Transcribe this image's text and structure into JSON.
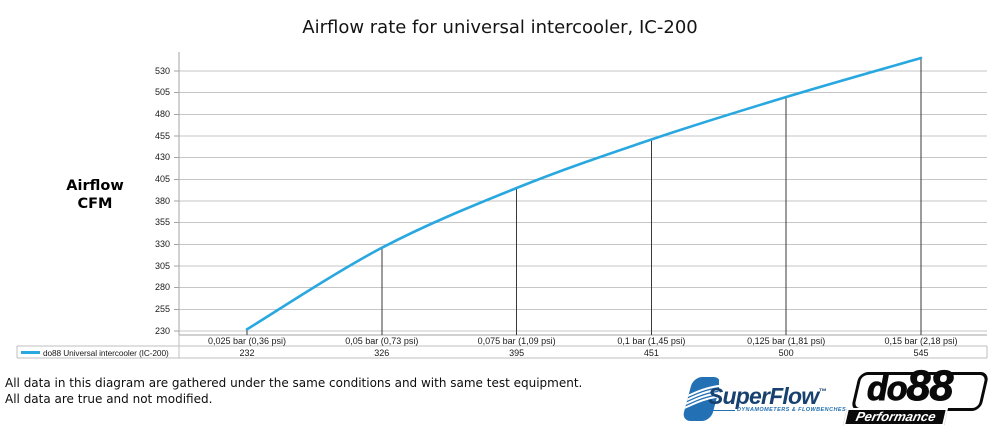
{
  "title": "Airflow rate for universal intercooler, IC-200",
  "y_axis_label": {
    "line1": "Airflow",
    "line2": "CFM"
  },
  "chart_data": {
    "type": "line",
    "title": "Airflow rate for universal intercooler, IC-200",
    "ylabel": "Airflow CFM",
    "categories": [
      "0,025 bar (0,36 psi)",
      "0,05 bar (0,73 psi)",
      "0,075 bar (1,09 psi)",
      "0,1 bar (1,45 psi)",
      "0,125 bar (1,81 psi)",
      "0,15 bar (2,18 psi)"
    ],
    "series": [
      {
        "name": "do88 Universal intercooler (IC-200)",
        "values": [
          232,
          326,
          395,
          451,
          500,
          545
        ]
      }
    ],
    "y_ticks": [
      230,
      255,
      280,
      305,
      330,
      355,
      380,
      405,
      430,
      455,
      480,
      505,
      530
    ],
    "ylim": [
      230,
      530
    ],
    "grid": "horizontal",
    "legend_position": "bottom-left"
  },
  "table": {
    "legend_label": "do88 Universal intercooler (IC-200)",
    "values": [
      "232",
      "326",
      "395",
      "451",
      "500",
      "545"
    ]
  },
  "footer": {
    "line1": "All data in this diagram are gathered under the same conditions and with same test equipment.",
    "line2": "All data are true and not modified."
  },
  "logos": {
    "superflow": {
      "name": "SuperFlow",
      "mark": "™",
      "tagline": "DYNAMOMETERS & FLOWBENCHES"
    },
    "do88": {
      "name_prefix": "do",
      "name_suffix": "88",
      "tagline": "Performance"
    }
  },
  "colors": {
    "series": "#29A8E0",
    "grid": "#C6C6C6",
    "axis": "#A3A3A3",
    "drop_line": "#3A3A3A",
    "table_border": "#BFBFBF",
    "superflow_blue": "#2470B4",
    "superflow_dark": "#17416F",
    "ink": "#0A0A0A"
  }
}
